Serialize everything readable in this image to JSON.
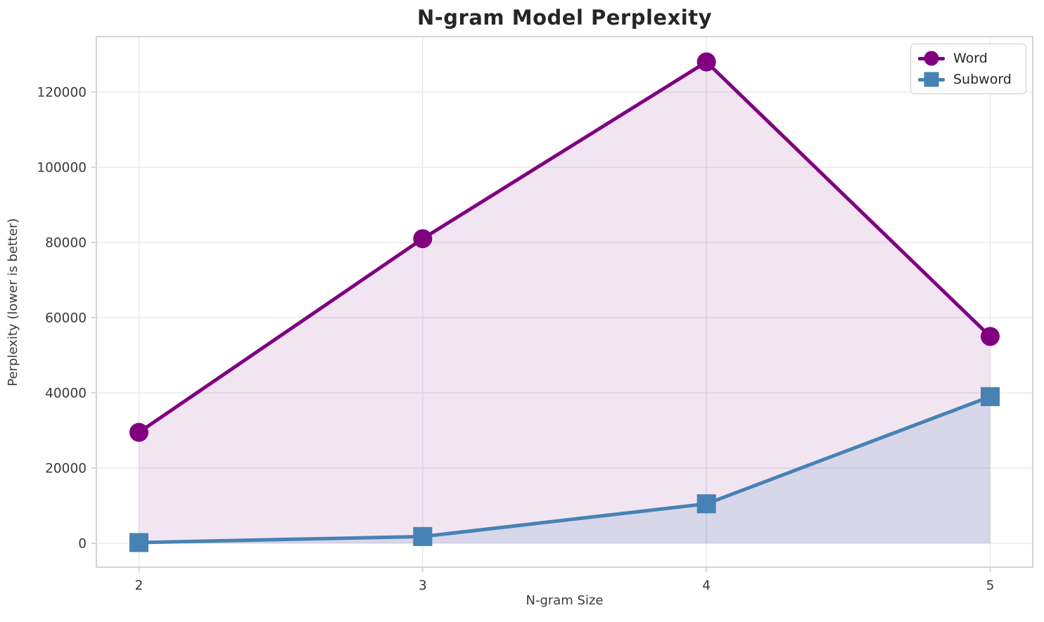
{
  "title": "N-gram Model Perplexity",
  "colors": {
    "word_series": "#800080",
    "subword_series": "#4682b4",
    "grid": "#e8e8e8",
    "spine": "#d4d4d4",
    "tick_label": "#3a3a3a",
    "title_text": "#262626",
    "background": "#ffffff"
  },
  "chart_data": {
    "type": "line",
    "title": "N-gram Model Perplexity",
    "xlabel": "N-gram Size",
    "ylabel": "Perplexity (lower is better)",
    "x": [
      2,
      3,
      4,
      5
    ],
    "series": [
      {
        "name": "Word",
        "marker": "circle",
        "color": "#800080",
        "fill_opacity": 0.1,
        "values": [
          29500,
          81000,
          128000,
          55000
        ]
      },
      {
        "name": "Subword",
        "marker": "square",
        "color": "#4682b4",
        "fill_opacity": 0.15,
        "values": [
          200,
          1800,
          10500,
          39000
        ]
      }
    ],
    "xticks": [
      2,
      3,
      4,
      5
    ],
    "yticks": [
      0,
      20000,
      40000,
      60000,
      80000,
      100000,
      120000
    ],
    "xlim": [
      1.85,
      5.15
    ],
    "ylim": [
      -6350,
      134750
    ],
    "grid": true,
    "area_fill_to_zero": true,
    "legend_position": "upper right"
  }
}
